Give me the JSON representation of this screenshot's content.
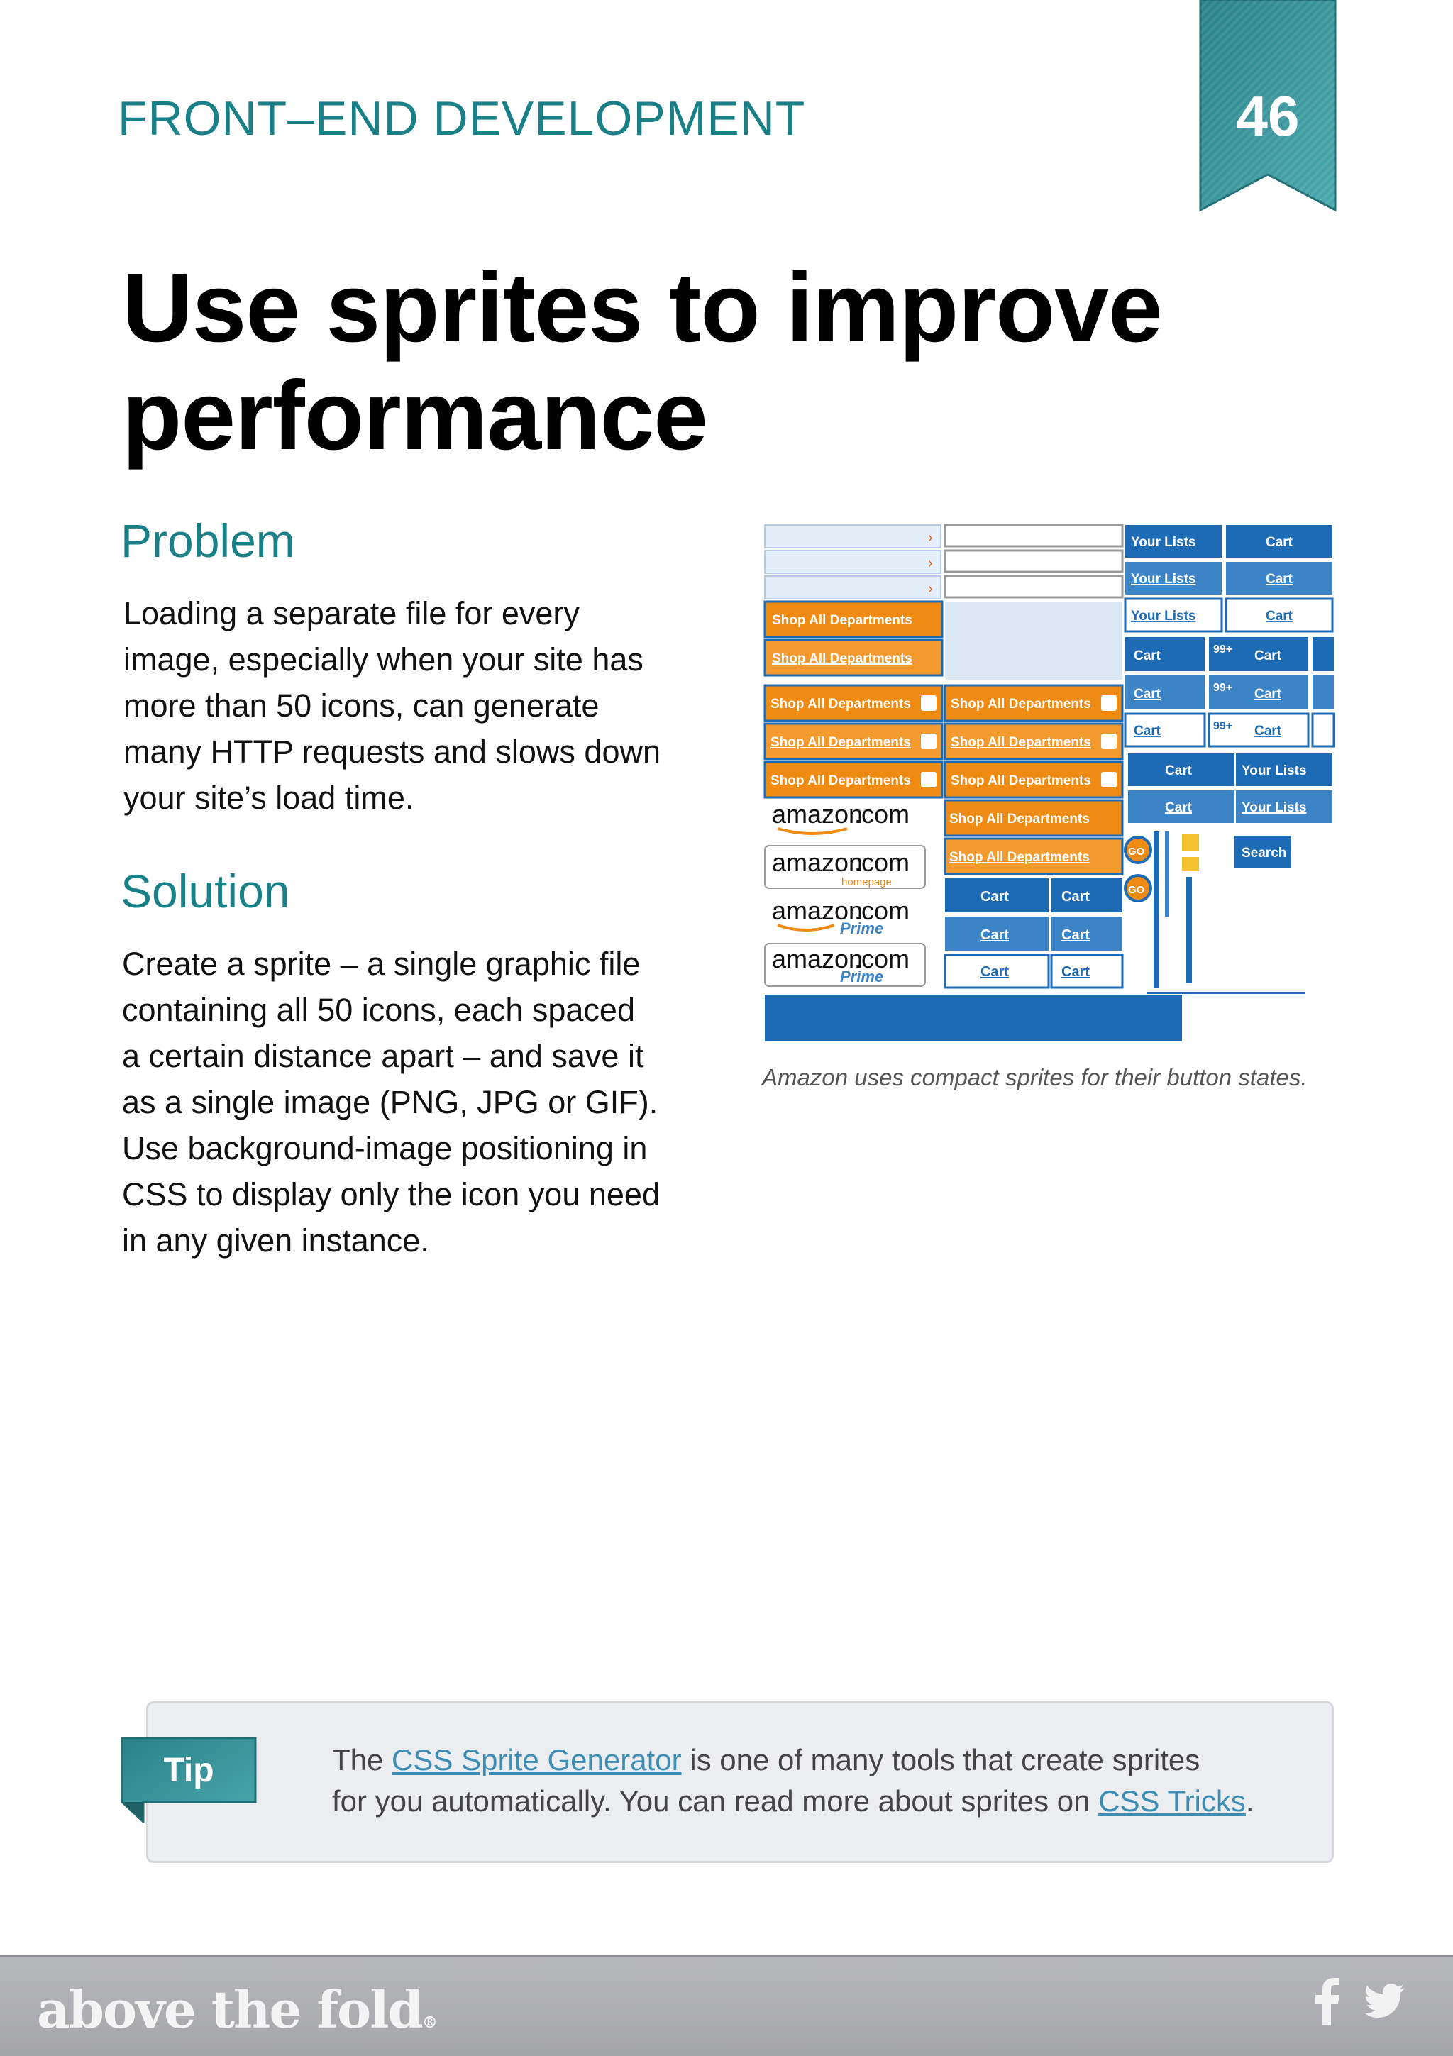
{
  "header": {
    "section": "FRONT–END DEVELOPMENT",
    "page_number": "46",
    "ribbon_color": "#2e8c93"
  },
  "title": "Use sprites to improve performance",
  "problem": {
    "heading": "Problem",
    "lines": [
      "Loading a separate file for every",
      "image, especially when your site has",
      "more than 50 icons, can generate",
      "many HTTP requests and slows down",
      "your site’s load time."
    ]
  },
  "solution": {
    "heading": "Solution",
    "lines": [
      "Create a sprite – a single graphic file",
      "containing all 50 icons, each spaced",
      "a certain distance apart – and save it",
      "as a single image (PNG, JPG or GIF).",
      "Use background-image positioning in",
      "CSS to display only the icon you need",
      "in any given instance."
    ]
  },
  "figure": {
    "caption": "Amazon uses compact sprites for their button states.",
    "shop_label": "Shop All Departments",
    "cart_label": "Cart",
    "lists_label": "Your Lists",
    "search_label": "Search",
    "go_label": "GO",
    "badge_label": "99+",
    "logo_text": "amazon",
    "logo_suffix": ".com",
    "homepage_label": "homepage",
    "prime_label": "Prime",
    "colors": {
      "orange": "#ef8a12",
      "blue": "#1d6ab5",
      "light": "#e4eef9"
    }
  },
  "tip": {
    "label": "Tip",
    "line1_pre": "The ",
    "link1": "CSS Sprite Generator",
    "line1_post": " is one of many tools that create sprites",
    "line2_pre": "for you automatically.  You can read more about sprites on ",
    "link2": "CSS Tricks",
    "line2_post": "."
  },
  "footer": {
    "brand": "above the fold",
    "brand_mark": "®",
    "icons": [
      "facebook-icon",
      "twitter-icon"
    ]
  }
}
